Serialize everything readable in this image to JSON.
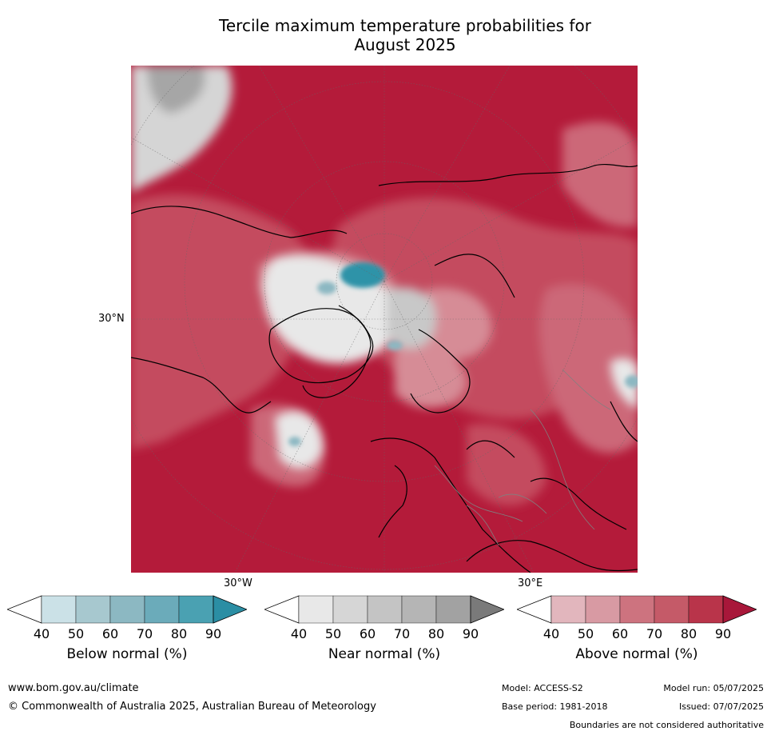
{
  "title_line1": "Tercile maximum temperature probabilities for",
  "title_line2": "August 2025",
  "map": {
    "lat_label": "30°N",
    "lon_left": "30°W",
    "lon_right": "30°E",
    "colors": {
      "ocean_above_high": "#b41b3a",
      "above_80": "#c44c5e",
      "above_70": "#cc6878",
      "above_60": "#d68c96",
      "neutral": "#e8e8e8",
      "near_50": "#d5d5d5",
      "near_70": "#a6a6a6",
      "below_60": "#8cb8c2",
      "below_80": "#2f93a8"
    }
  },
  "colorbars": [
    {
      "label": "Below normal (%)",
      "ticks": [
        "40",
        "50",
        "60",
        "70",
        "80",
        "90"
      ],
      "colors": [
        "#ffffff",
        "#cbe1e7",
        "#a7c8cf",
        "#8cb8c2",
        "#6babba",
        "#4aa1b2",
        "#2b8ea4"
      ]
    },
    {
      "label": "Near normal (%)",
      "ticks": [
        "40",
        "50",
        "60",
        "70",
        "80",
        "90"
      ],
      "colors": [
        "#ffffff",
        "#e8e8e8",
        "#d6d6d6",
        "#c4c4c4",
        "#b5b5b5",
        "#a2a2a2",
        "#7a7a7a"
      ]
    },
    {
      "label": "Above normal (%)",
      "ticks": [
        "40",
        "50",
        "60",
        "70",
        "80",
        "90"
      ],
      "colors": [
        "#ffffff",
        "#e2b6bd",
        "#d89aa3",
        "#cd737f",
        "#c55a68",
        "#b9344a",
        "#a8173a"
      ]
    }
  ],
  "footer": {
    "website": "www.bom.gov.au/climate",
    "copyright": "© Commonwealth of Australia 2025, Australian Bureau of Meteorology",
    "model": "Model: ACCESS-S2",
    "model_run": "Model run: 05/07/2025",
    "base_period": "Base period: 1981-2018",
    "issued": "Issued: 07/07/2025",
    "disclaimer": "Boundaries are not considered authoritative"
  }
}
